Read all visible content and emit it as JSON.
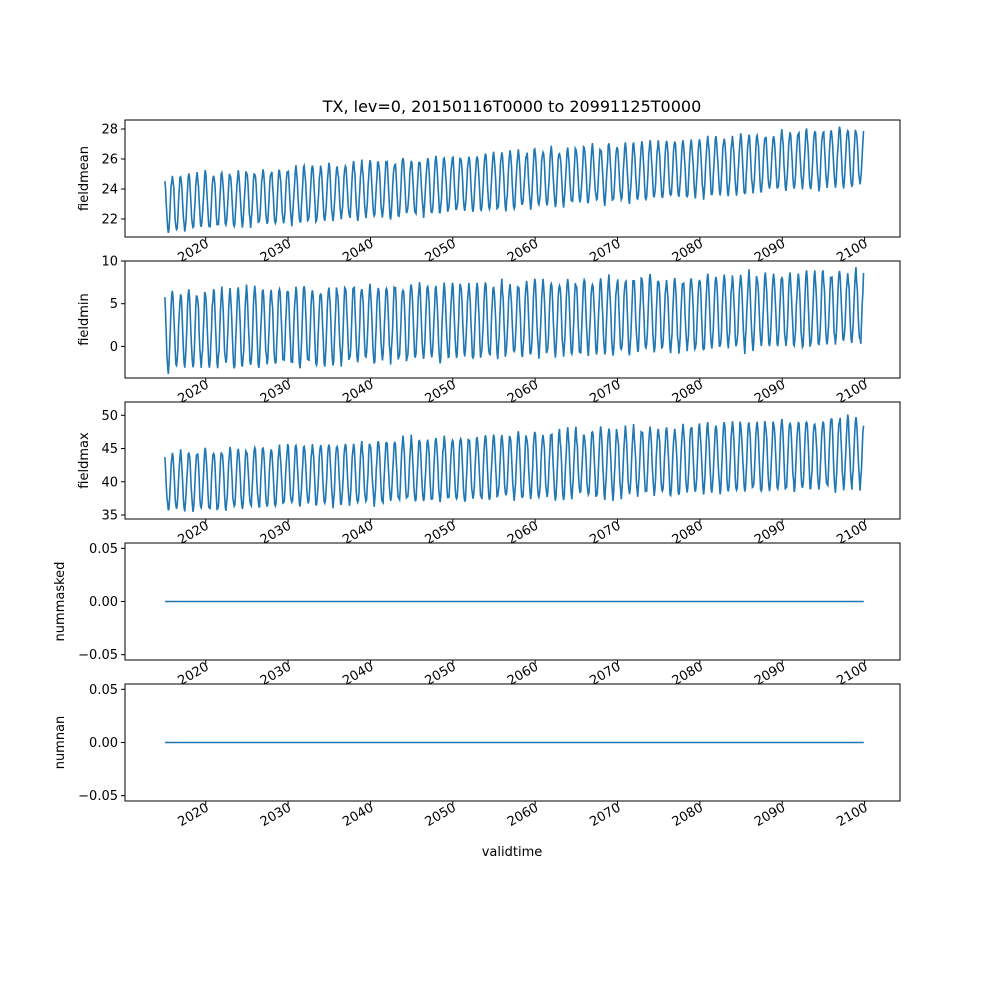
{
  "title": "TX, lev=0, 20150116T0000 to 20991125T0000",
  "xlabel": "validtime",
  "chart_data": [
    {
      "type": "line",
      "ylabel": "fieldmean",
      "ylim": [
        20.8,
        28.6
      ],
      "yticks": [
        "22",
        "24",
        "26",
        "28"
      ],
      "yticks_values": [
        22,
        24,
        26,
        28
      ],
      "xlim": [
        2010.2,
        2104.3
      ],
      "xticks": [
        "2020",
        "2030",
        "2040",
        "2050",
        "2060",
        "2070",
        "2080",
        "2090",
        "2100"
      ],
      "series": [
        {
          "color": "#1f77b4",
          "x_start": 2015.04,
          "x_end": 2099.9,
          "period": 1.0,
          "trend_start": 23.0,
          "trend_end": 26.2,
          "amp_start": 1.8,
          "amp_end": 1.9
        }
      ]
    },
    {
      "type": "line",
      "ylabel": "fieldmin",
      "ylim": [
        -3.7,
        10
      ],
      "yticks": [
        "0",
        "5",
        "10"
      ],
      "yticks_values": [
        0,
        5,
        10
      ],
      "xlim": [
        2010.2,
        2104.3
      ],
      "xticks": [
        "2020",
        "2030",
        "2040",
        "2050",
        "2060",
        "2070",
        "2080",
        "2090",
        "2100"
      ],
      "series": [
        {
          "color": "#1f77b4",
          "x_start": 2015.04,
          "x_end": 2099.9,
          "period": 1.0,
          "trend_start": 1.8,
          "trend_end": 4.5,
          "amp_start": 4.4,
          "amp_end": 4.2
        }
      ]
    },
    {
      "type": "line",
      "ylabel": "fieldmax",
      "ylim": [
        34.4,
        52
      ],
      "yticks": [
        "35",
        "40",
        "45",
        "50"
      ],
      "yticks_values": [
        35,
        40,
        45,
        50
      ],
      "xlim": [
        2010.2,
        2104.3
      ],
      "xticks": [
        "2020",
        "2030",
        "2040",
        "2050",
        "2060",
        "2070",
        "2080",
        "2090",
        "2100"
      ],
      "series": [
        {
          "color": "#1f77b4",
          "x_start": 2015.04,
          "x_end": 2099.9,
          "period": 1.0,
          "trend_start": 40.0,
          "trend_end": 44.5,
          "amp_start": 4.3,
          "amp_end": 5.3
        }
      ]
    },
    {
      "type": "line",
      "ylabel": "nummasked",
      "ylim": [
        -0.055,
        0.055
      ],
      "yticks": [
        "0.05",
        "0.00",
        "−0.05"
      ],
      "yticks_values": [
        0.05,
        0.0,
        -0.05
      ],
      "xlim": [
        2010.2,
        2104.3
      ],
      "xticks": [
        "2020",
        "2030",
        "2040",
        "2050",
        "2060",
        "2070",
        "2080",
        "2090",
        "2100"
      ],
      "series": [
        {
          "color": "#1f77b4",
          "x": [
            2015.04,
            2099.9
          ],
          "y": [
            0,
            0
          ]
        }
      ]
    },
    {
      "type": "line",
      "ylabel": "numnan",
      "ylim": [
        -0.055,
        0.055
      ],
      "yticks": [
        "0.05",
        "0.00",
        "−0.05"
      ],
      "yticks_values": [
        0.05,
        0.0,
        -0.05
      ],
      "xlim": [
        2010.2,
        2104.3
      ],
      "xticks": [
        "2020",
        "2030",
        "2040",
        "2050",
        "2060",
        "2070",
        "2080",
        "2090",
        "2100"
      ],
      "series": [
        {
          "color": "#1f77b4",
          "x": [
            2015.04,
            2099.9
          ],
          "y": [
            0,
            0
          ]
        }
      ]
    }
  ]
}
